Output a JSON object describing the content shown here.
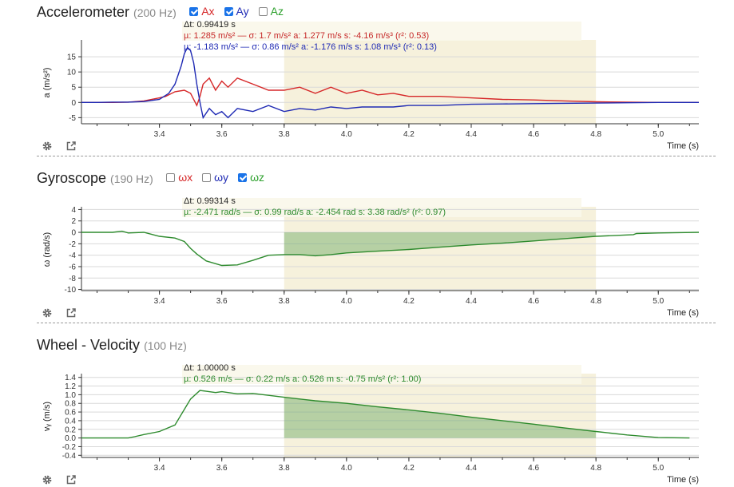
{
  "panels": [
    {
      "id": "accel",
      "title": "Accelerometer",
      "rate": "(200 Hz)",
      "checkboxes": [
        {
          "label": "Ax",
          "checked": true,
          "color": "#d62728"
        },
        {
          "label": "Ay",
          "checked": true,
          "color": "#1f2ab4"
        },
        {
          "label": "Az",
          "checked": false,
          "color": "#2ca02c"
        }
      ],
      "stats": {
        "dt": "Δt: 0.99419 s",
        "lines": [
          {
            "text": "µ: 1.285 m/s² — σ: 1.7 m/s²      a: 1.277 m/s    s: -4.16 m/s³ (r²: 0.53)",
            "color": "#c62828"
          },
          {
            "text": "µ: -1.183 m/s² — σ: 0.86 m/s²   a: -1.176 m/s   s: 1.08 m/s³ (r²: 0.13)",
            "color": "#1f2ab4"
          }
        ]
      }
    },
    {
      "id": "gyro",
      "title": "Gyroscope",
      "rate": "(190 Hz)",
      "checkboxes": [
        {
          "label": "ωx",
          "checked": false,
          "color": "#d62728"
        },
        {
          "label": "ωy",
          "checked": false,
          "color": "#1f2ab4"
        },
        {
          "label": "ωz",
          "checked": true,
          "color": "#2ca02c"
        }
      ],
      "stats": {
        "dt": "Δt: 0.99314 s",
        "lines": [
          {
            "text": "µ: -2.471 rad/s — σ: 0.99 rad/s   a: -2.454 rad   s: 3.38 rad/s² (r²: 0.97)",
            "color": "#2e8b2e"
          }
        ]
      }
    },
    {
      "id": "wheel",
      "title": "Wheel - Velocity",
      "rate": "(100 Hz)",
      "checkboxes": [],
      "stats": {
        "dt": "Δt: 1.00000 s",
        "lines": [
          {
            "text": "µ: 0.526 m/s — σ: 0.22 m/s   a: 0.526 m   s: -0.75 m/s² (r²: 1.00)",
            "color": "#2e8b2e"
          }
        ]
      }
    }
  ],
  "chart_data": [
    {
      "type": "line",
      "ylabel": "a (m/s²)",
      "xlabel": "Time (s)",
      "xlim": [
        3.15,
        5.13
      ],
      "ylim": [
        -7,
        20
      ],
      "xticks": [
        3.4,
        3.6,
        3.8,
        4.0,
        4.2,
        4.4,
        4.6,
        4.8,
        5.0
      ],
      "xtick_labels": [
        "3.4",
        "3.6",
        "3.8",
        "4.0",
        "4.2",
        "4.4",
        "4.6",
        "4.8",
        "5.0"
      ],
      "yticks": [
        -5,
        0,
        5,
        10,
        15
      ],
      "ytick_labels": [
        "-5",
        "0",
        "5",
        "10",
        "15"
      ],
      "selection": [
        3.8,
        4.8
      ],
      "series": [
        {
          "color": "#d62728",
          "x": [
            3.15,
            3.2,
            3.25,
            3.3,
            3.35,
            3.4,
            3.42,
            3.45,
            3.48,
            3.5,
            3.52,
            3.53,
            3.54,
            3.56,
            3.58,
            3.6,
            3.62,
            3.65,
            3.7,
            3.75,
            3.8,
            3.85,
            3.9,
            3.95,
            4.0,
            4.05,
            4.1,
            4.15,
            4.2,
            4.3,
            4.4,
            4.5,
            4.6,
            4.7,
            4.8,
            4.9,
            5.0,
            5.13
          ],
          "y": [
            0,
            0,
            0,
            0.1,
            0.5,
            1.5,
            2,
            3.5,
            4,
            3,
            -1,
            2,
            6,
            8,
            4,
            7,
            5,
            8,
            6,
            4,
            4,
            5,
            3,
            5,
            3,
            4,
            2.5,
            3,
            2,
            2,
            1.5,
            1,
            0.8,
            0.5,
            0.2,
            0.1,
            0,
            0
          ]
        },
        {
          "color": "#1f2ab4",
          "x": [
            3.15,
            3.2,
            3.25,
            3.3,
            3.35,
            3.4,
            3.43,
            3.45,
            3.47,
            3.48,
            3.49,
            3.5,
            3.51,
            3.52,
            3.53,
            3.54,
            3.56,
            3.58,
            3.6,
            3.62,
            3.65,
            3.7,
            3.75,
            3.8,
            3.85,
            3.9,
            3.95,
            4.0,
            4.05,
            4.1,
            4.15,
            4.2,
            4.3,
            4.4,
            4.5,
            4.6,
            4.7,
            4.8,
            4.9,
            5.0,
            5.13
          ],
          "y": [
            0,
            0,
            0.1,
            0.1,
            0.3,
            1,
            3,
            6,
            12,
            16,
            18,
            17,
            13,
            6,
            0,
            -5,
            -2,
            -4,
            -3,
            -5,
            -2,
            -3,
            -1,
            -3,
            -2,
            -2.5,
            -1.5,
            -2,
            -1.5,
            -1.5,
            -1.5,
            -1,
            -1,
            -0.6,
            -0.5,
            -0.4,
            -0.3,
            -0.2,
            -0.1,
            0,
            0
          ]
        }
      ]
    },
    {
      "type": "area",
      "ylabel": "ω (rad/s)",
      "xlabel": "Time (s)",
      "xlim": [
        3.15,
        5.13
      ],
      "ylim": [
        -10.2,
        4.2
      ],
      "xticks": [
        3.4,
        3.6,
        3.8,
        4.0,
        4.2,
        4.4,
        4.6,
        4.8,
        5.0
      ],
      "xtick_labels": [
        "3.4",
        "3.6",
        "3.8",
        "4.0",
        "4.2",
        "4.4",
        "4.6",
        "4.8",
        "5.0"
      ],
      "yticks": [
        -10,
        -8,
        -6,
        -4,
        -2,
        0,
        2,
        4
      ],
      "ytick_labels": [
        "-10",
        "-8",
        "-6",
        "-4",
        "-2",
        "0",
        "2",
        "4"
      ],
      "selection": [
        3.8,
        4.8
      ],
      "series": [
        {
          "color": "#2e8b2e",
          "x": [
            3.15,
            3.2,
            3.25,
            3.28,
            3.3,
            3.35,
            3.4,
            3.45,
            3.48,
            3.5,
            3.52,
            3.55,
            3.6,
            3.65,
            3.7,
            3.75,
            3.8,
            3.85,
            3.9,
            3.95,
            4.0,
            4.1,
            4.2,
            4.3,
            4.4,
            4.5,
            4.6,
            4.7,
            4.8,
            4.92,
            4.93,
            5.0,
            5.13
          ],
          "y": [
            0,
            0,
            0,
            0.2,
            -0.1,
            0,
            -0.7,
            -1,
            -1.6,
            -2.8,
            -3.8,
            -5,
            -5.8,
            -5.7,
            -4.9,
            -4,
            -3.9,
            -3.9,
            -4.1,
            -3.9,
            -3.6,
            -3.3,
            -3,
            -2.6,
            -2.2,
            -1.9,
            -1.5,
            -1.1,
            -0.7,
            -0.4,
            -0.2,
            -0.1,
            0
          ]
        }
      ]
    },
    {
      "type": "area",
      "ylabel": "vᵧ (m/s)",
      "xlabel": "Time (s)",
      "xlim": [
        3.15,
        5.13
      ],
      "ylim": [
        -0.45,
        1.45
      ],
      "xticks": [
        3.4,
        3.6,
        3.8,
        4.0,
        4.2,
        4.4,
        4.6,
        4.8,
        5.0
      ],
      "xtick_labels": [
        "3.4",
        "3.6",
        "3.8",
        "4.0",
        "4.2",
        "4.4",
        "4.6",
        "4.8",
        "5.0"
      ],
      "yticks": [
        -0.4,
        -0.2,
        0.0,
        0.2,
        0.4,
        0.6,
        0.8,
        1.0,
        1.2,
        1.4
      ],
      "ytick_labels": [
        "-0.4",
        "-0.2",
        "0.0",
        "0.2",
        "0.4",
        "0.6",
        "0.8",
        "1.0",
        "1.2",
        "1.4"
      ],
      "selection": [
        3.8,
        4.8
      ],
      "series": [
        {
          "color": "#2e8b2e",
          "x": [
            3.15,
            3.2,
            3.3,
            3.32,
            3.35,
            3.4,
            3.45,
            3.5,
            3.53,
            3.55,
            3.58,
            3.6,
            3.65,
            3.7,
            3.8,
            3.9,
            4.0,
            4.1,
            4.2,
            4.3,
            4.4,
            4.5,
            4.6,
            4.7,
            4.8,
            4.9,
            5.0,
            5.1
          ],
          "y": [
            0,
            0,
            0,
            0.03,
            0.08,
            0.15,
            0.3,
            0.9,
            1.1,
            1.08,
            1.05,
            1.07,
            1.02,
            1.03,
            0.94,
            0.86,
            0.8,
            0.72,
            0.65,
            0.57,
            0.48,
            0.4,
            0.32,
            0.23,
            0.15,
            0.07,
            0.01,
            0
          ]
        }
      ]
    }
  ]
}
